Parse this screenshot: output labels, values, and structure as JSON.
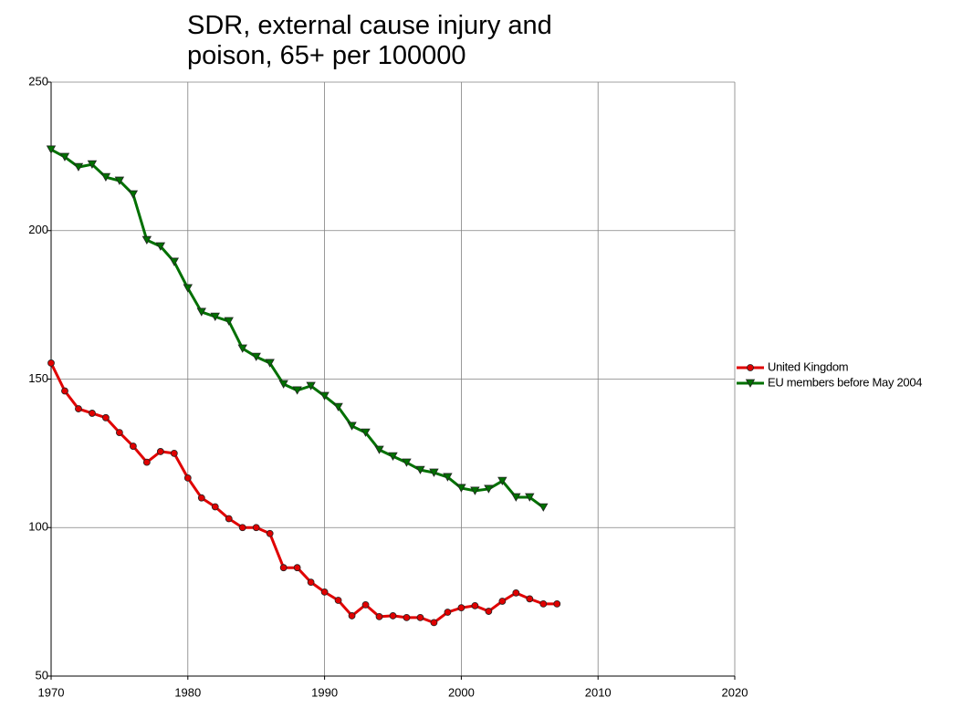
{
  "chart_data": {
    "type": "line",
    "title": "SDR, external cause injury and poison, 65+ per 100000",
    "x": [
      1970,
      1971,
      1972,
      1973,
      1974,
      1975,
      1976,
      1977,
      1978,
      1979,
      1980,
      1981,
      1982,
      1983,
      1984,
      1985,
      1986,
      1987,
      1988,
      1989,
      1990,
      1991,
      1992,
      1993,
      1994,
      1995,
      1996,
      1997,
      1998,
      1999,
      2000,
      2001,
      2002,
      2003,
      2004,
      2005,
      2006,
      2007
    ],
    "series": [
      {
        "name": "United Kingdom",
        "color": "#e00000",
        "marker": "circle",
        "values": [
          155.4,
          146,
          140,
          138.5,
          137,
          132,
          127.4,
          122,
          125.6,
          125,
          116.7,
          110,
          107,
          103,
          100,
          100,
          98,
          86.5,
          86.5,
          81.6,
          78.3,
          75.5,
          70.3,
          74,
          70,
          70.3,
          69.7,
          69.7,
          68,
          71.5,
          73,
          73.7,
          71.8,
          75.2,
          78,
          76,
          74.3,
          74.3
        ]
      },
      {
        "name": "EU members before May 2004",
        "color": "#007000",
        "marker": "triangle-down",
        "values": [
          227.3,
          224.8,
          221.4,
          222.3,
          218,
          216.8,
          212.2,
          196.8,
          194.7,
          189.5,
          180.6,
          172.6,
          171,
          169.5,
          160.3,
          157.5,
          155.4,
          148.3,
          146.2,
          147.7,
          144.3,
          140.6,
          134.2,
          132,
          126.2,
          124,
          121.9,
          119.4,
          118.5,
          117,
          113.3,
          112.4,
          113,
          115.7,
          110.2,
          110.2,
          106.8,
          null
        ]
      }
    ],
    "xlim": [
      1970,
      2020
    ],
    "xticks": [
      1970,
      1980,
      1990,
      2000,
      2010,
      2020
    ],
    "ylim": [
      50,
      250
    ],
    "yticks": [
      50,
      100,
      150,
      200,
      250
    ],
    "grid": true,
    "legend": "right"
  }
}
